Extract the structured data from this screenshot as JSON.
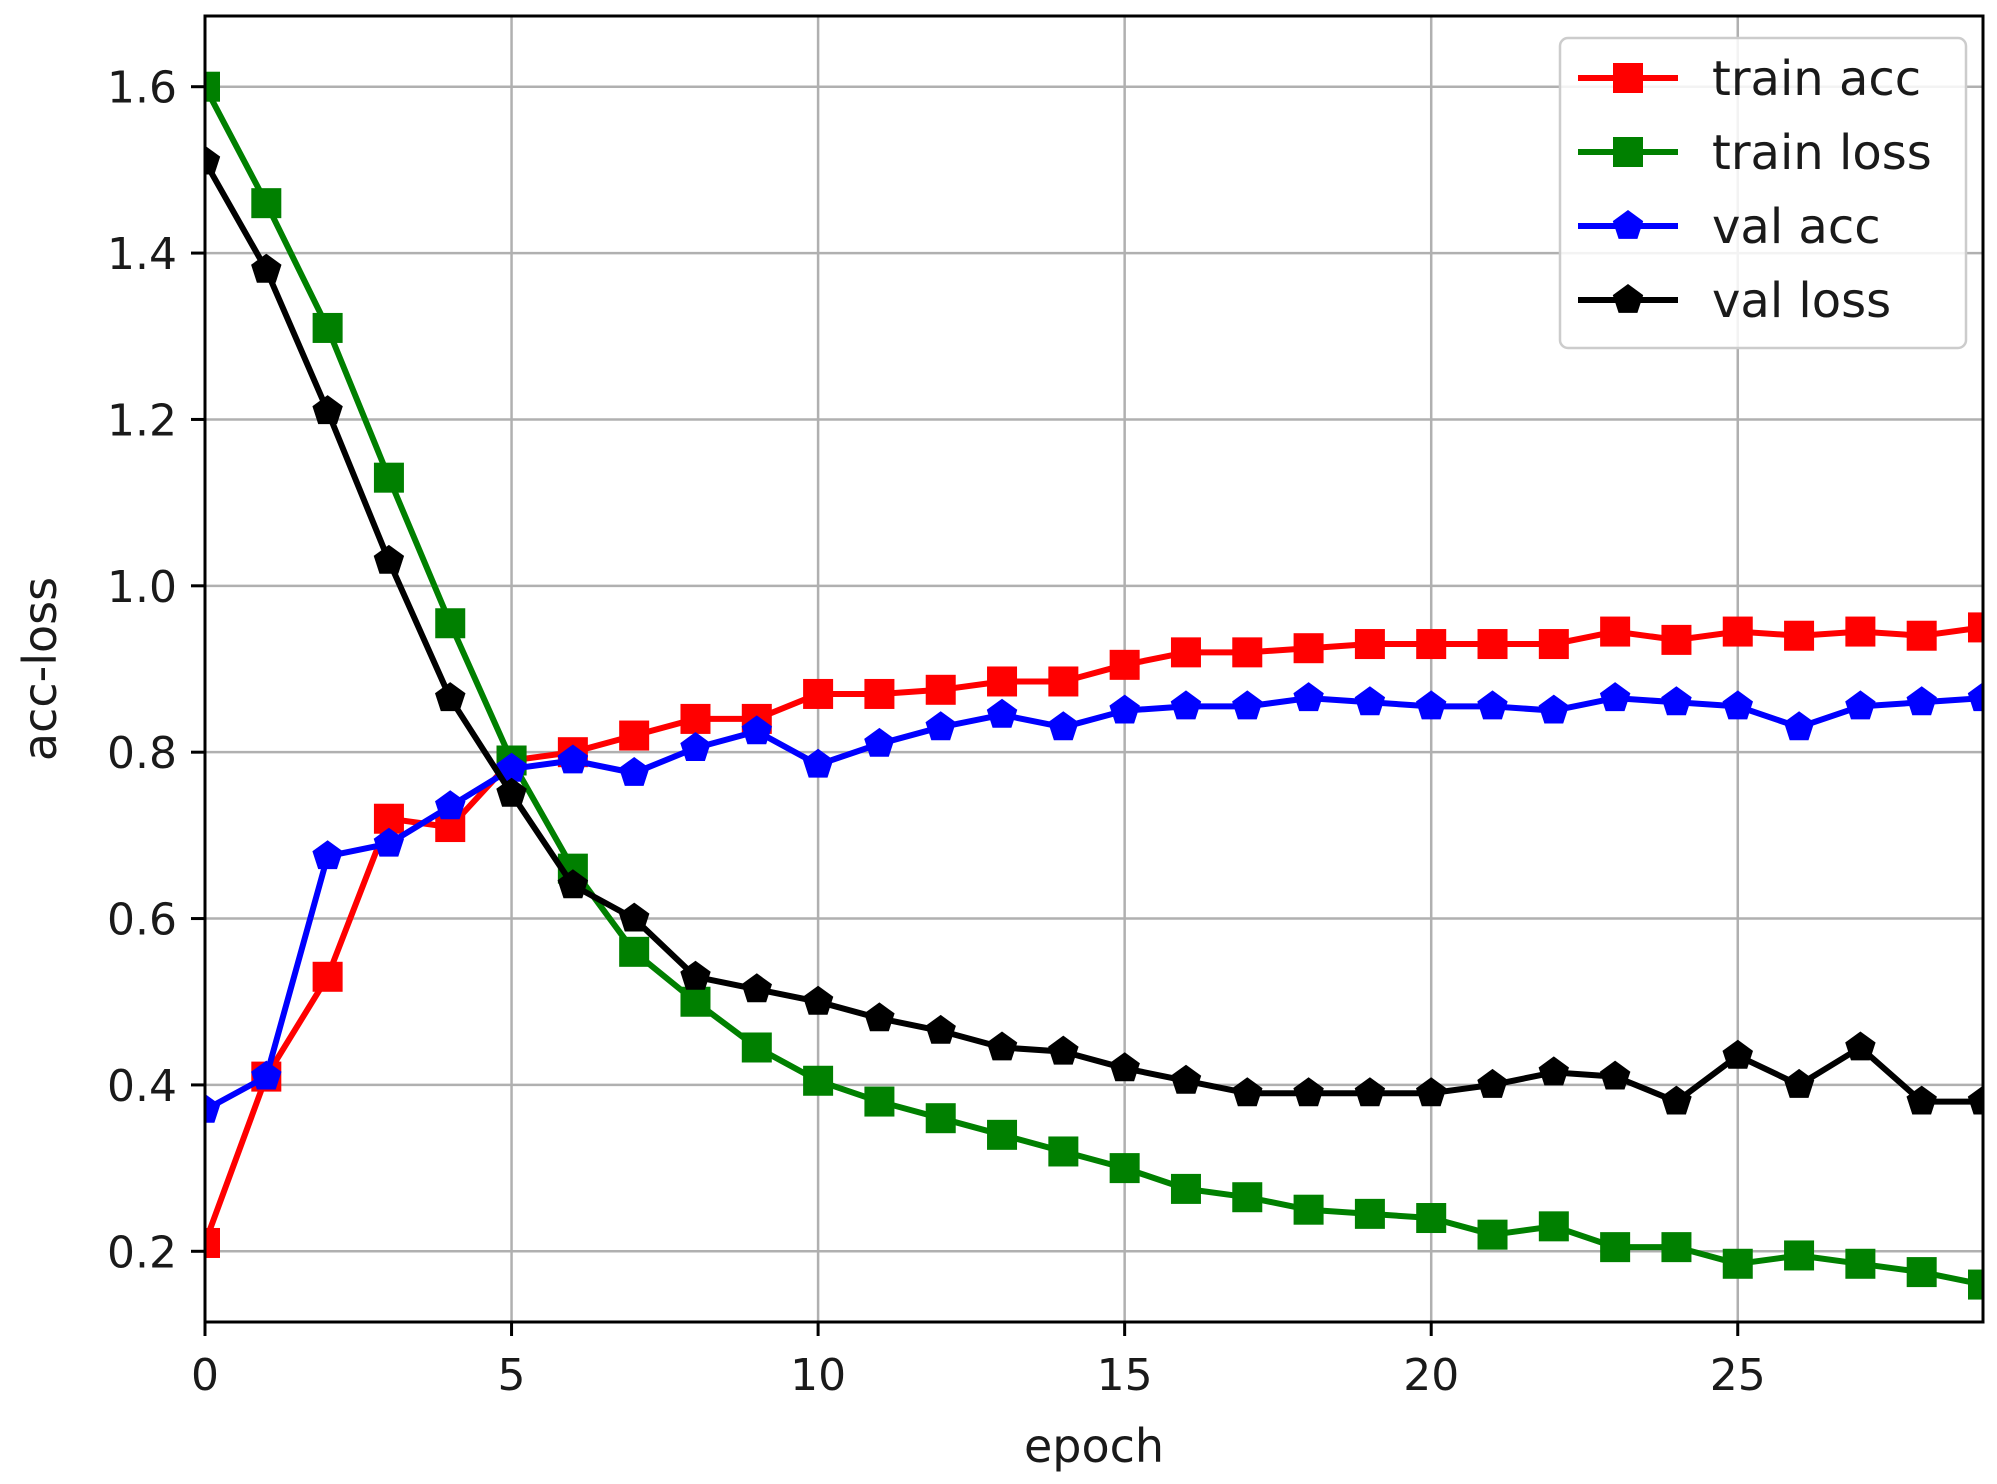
{
  "chart_data": {
    "type": "line",
    "title": "",
    "xlabel": "epoch",
    "ylabel": "acc-loss",
    "xlim": [
      0,
      29
    ],
    "ylim": [
      0.115,
      1.685
    ],
    "xticks": [
      0,
      5,
      10,
      15,
      20,
      25
    ],
    "xtick_labels": [
      "0",
      "5",
      "10",
      "15",
      "20",
      "25"
    ],
    "yticks": [
      0.2,
      0.4,
      0.6,
      0.8,
      1.0,
      1.2,
      1.4,
      1.6
    ],
    "ytick_labels": [
      "0.2",
      "0.4",
      "0.6",
      "0.8",
      "1.0",
      "1.2",
      "1.4",
      "1.6"
    ],
    "grid": true,
    "legend_position": "top-right",
    "x": [
      0,
      1,
      2,
      3,
      4,
      5,
      6,
      7,
      8,
      9,
      10,
      11,
      12,
      13,
      14,
      15,
      16,
      17,
      18,
      19,
      20,
      21,
      22,
      23,
      24,
      25,
      26,
      27,
      28,
      29
    ],
    "series": [
      {
        "name": "train acc",
        "color": "#ff0000",
        "marker": "square",
        "values": [
          0.21,
          0.41,
          0.53,
          0.72,
          0.71,
          0.79,
          0.8,
          0.82,
          0.84,
          0.84,
          0.87,
          0.87,
          0.875,
          0.885,
          0.885,
          0.905,
          0.92,
          0.92,
          0.925,
          0.93,
          0.93,
          0.93,
          0.93,
          0.945,
          0.935,
          0.945,
          0.94,
          0.945,
          0.94,
          0.95
        ]
      },
      {
        "name": "train loss",
        "color": "#008000",
        "marker": "square",
        "values": [
          1.6,
          1.46,
          1.31,
          1.13,
          0.955,
          0.79,
          0.66,
          0.56,
          0.5,
          0.445,
          0.405,
          0.38,
          0.36,
          0.34,
          0.32,
          0.3,
          0.275,
          0.265,
          0.25,
          0.245,
          0.24,
          0.22,
          0.23,
          0.205,
          0.205,
          0.185,
          0.195,
          0.185,
          0.175,
          0.16
        ]
      },
      {
        "name": "val acc",
        "color": "#0000ff",
        "marker": "pentagon",
        "values": [
          0.37,
          0.41,
          0.675,
          0.69,
          0.735,
          0.78,
          0.79,
          0.775,
          0.805,
          0.825,
          0.785,
          0.81,
          0.83,
          0.845,
          0.83,
          0.85,
          0.855,
          0.855,
          0.865,
          0.86,
          0.855,
          0.855,
          0.85,
          0.865,
          0.86,
          0.855,
          0.83,
          0.855,
          0.86,
          0.865
        ]
      },
      {
        "name": "val loss",
        "color": "#000000",
        "marker": "pentagon",
        "values": [
          1.51,
          1.38,
          1.21,
          1.03,
          0.865,
          0.75,
          0.64,
          0.6,
          0.53,
          0.515,
          0.5,
          0.48,
          0.465,
          0.445,
          0.44,
          0.42,
          0.405,
          0.39,
          0.39,
          0.39,
          0.39,
          0.4,
          0.415,
          0.41,
          0.38,
          0.435,
          0.4,
          0.445,
          0.38,
          0.38
        ]
      }
    ]
  }
}
